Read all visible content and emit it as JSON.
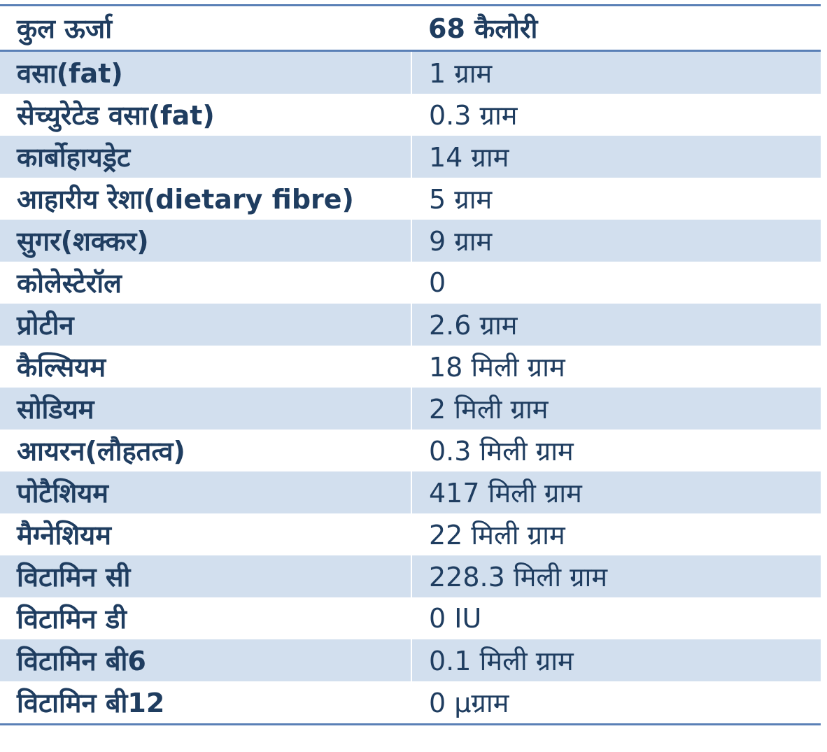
{
  "header": {
    "label": "कुल ऊर्जा",
    "value": "68 कैलोरी"
  },
  "rows": [
    {
      "name": "वसा(fat)",
      "value": "1 ग्राम"
    },
    {
      "name": "सेच्युरेटेड वसा(fat)",
      "value": "0.3 ग्राम"
    },
    {
      "name": "कार्बोहायड्रेट",
      "value": "14 ग्राम"
    },
    {
      "name": "आहारीय रेशा(dietary fibre)",
      "value": "5 ग्राम"
    },
    {
      "name": "सुगर(शक्कर)",
      "value": "9 ग्राम"
    },
    {
      "name": "कोलेस्टेरॉल",
      "value": "0"
    },
    {
      "name": "प्रोटीन",
      "value": "2.6 ग्राम"
    },
    {
      "name": "कैल्सियम",
      "value": "18 मिली ग्राम"
    },
    {
      "name": "सोडियम",
      "value": "2 मिली ग्राम"
    },
    {
      "name": "आयरन(लौहतत्व)",
      "value": "0.3 मिली ग्राम"
    },
    {
      "name": "पोटैशियम",
      "value": "417 मिली ग्राम"
    },
    {
      "name": "मैग्नेशियम",
      "value": "22 मिली ग्राम"
    },
    {
      "name": "विटामिन सी",
      "value": "228.3 मिली ग्राम"
    },
    {
      "name": "विटामिन डी",
      "value": "0 IU"
    },
    {
      "name": "विटामिन बी6",
      "value": "0.1 मिली ग्राम"
    },
    {
      "name": "विटामिन बी12",
      "value": "0 μग्राम"
    }
  ],
  "colors": {
    "text": "#1f3d60",
    "border": "#5a80b6",
    "shaded_row": "#d2dfee",
    "plain_row": "#ffffff"
  }
}
